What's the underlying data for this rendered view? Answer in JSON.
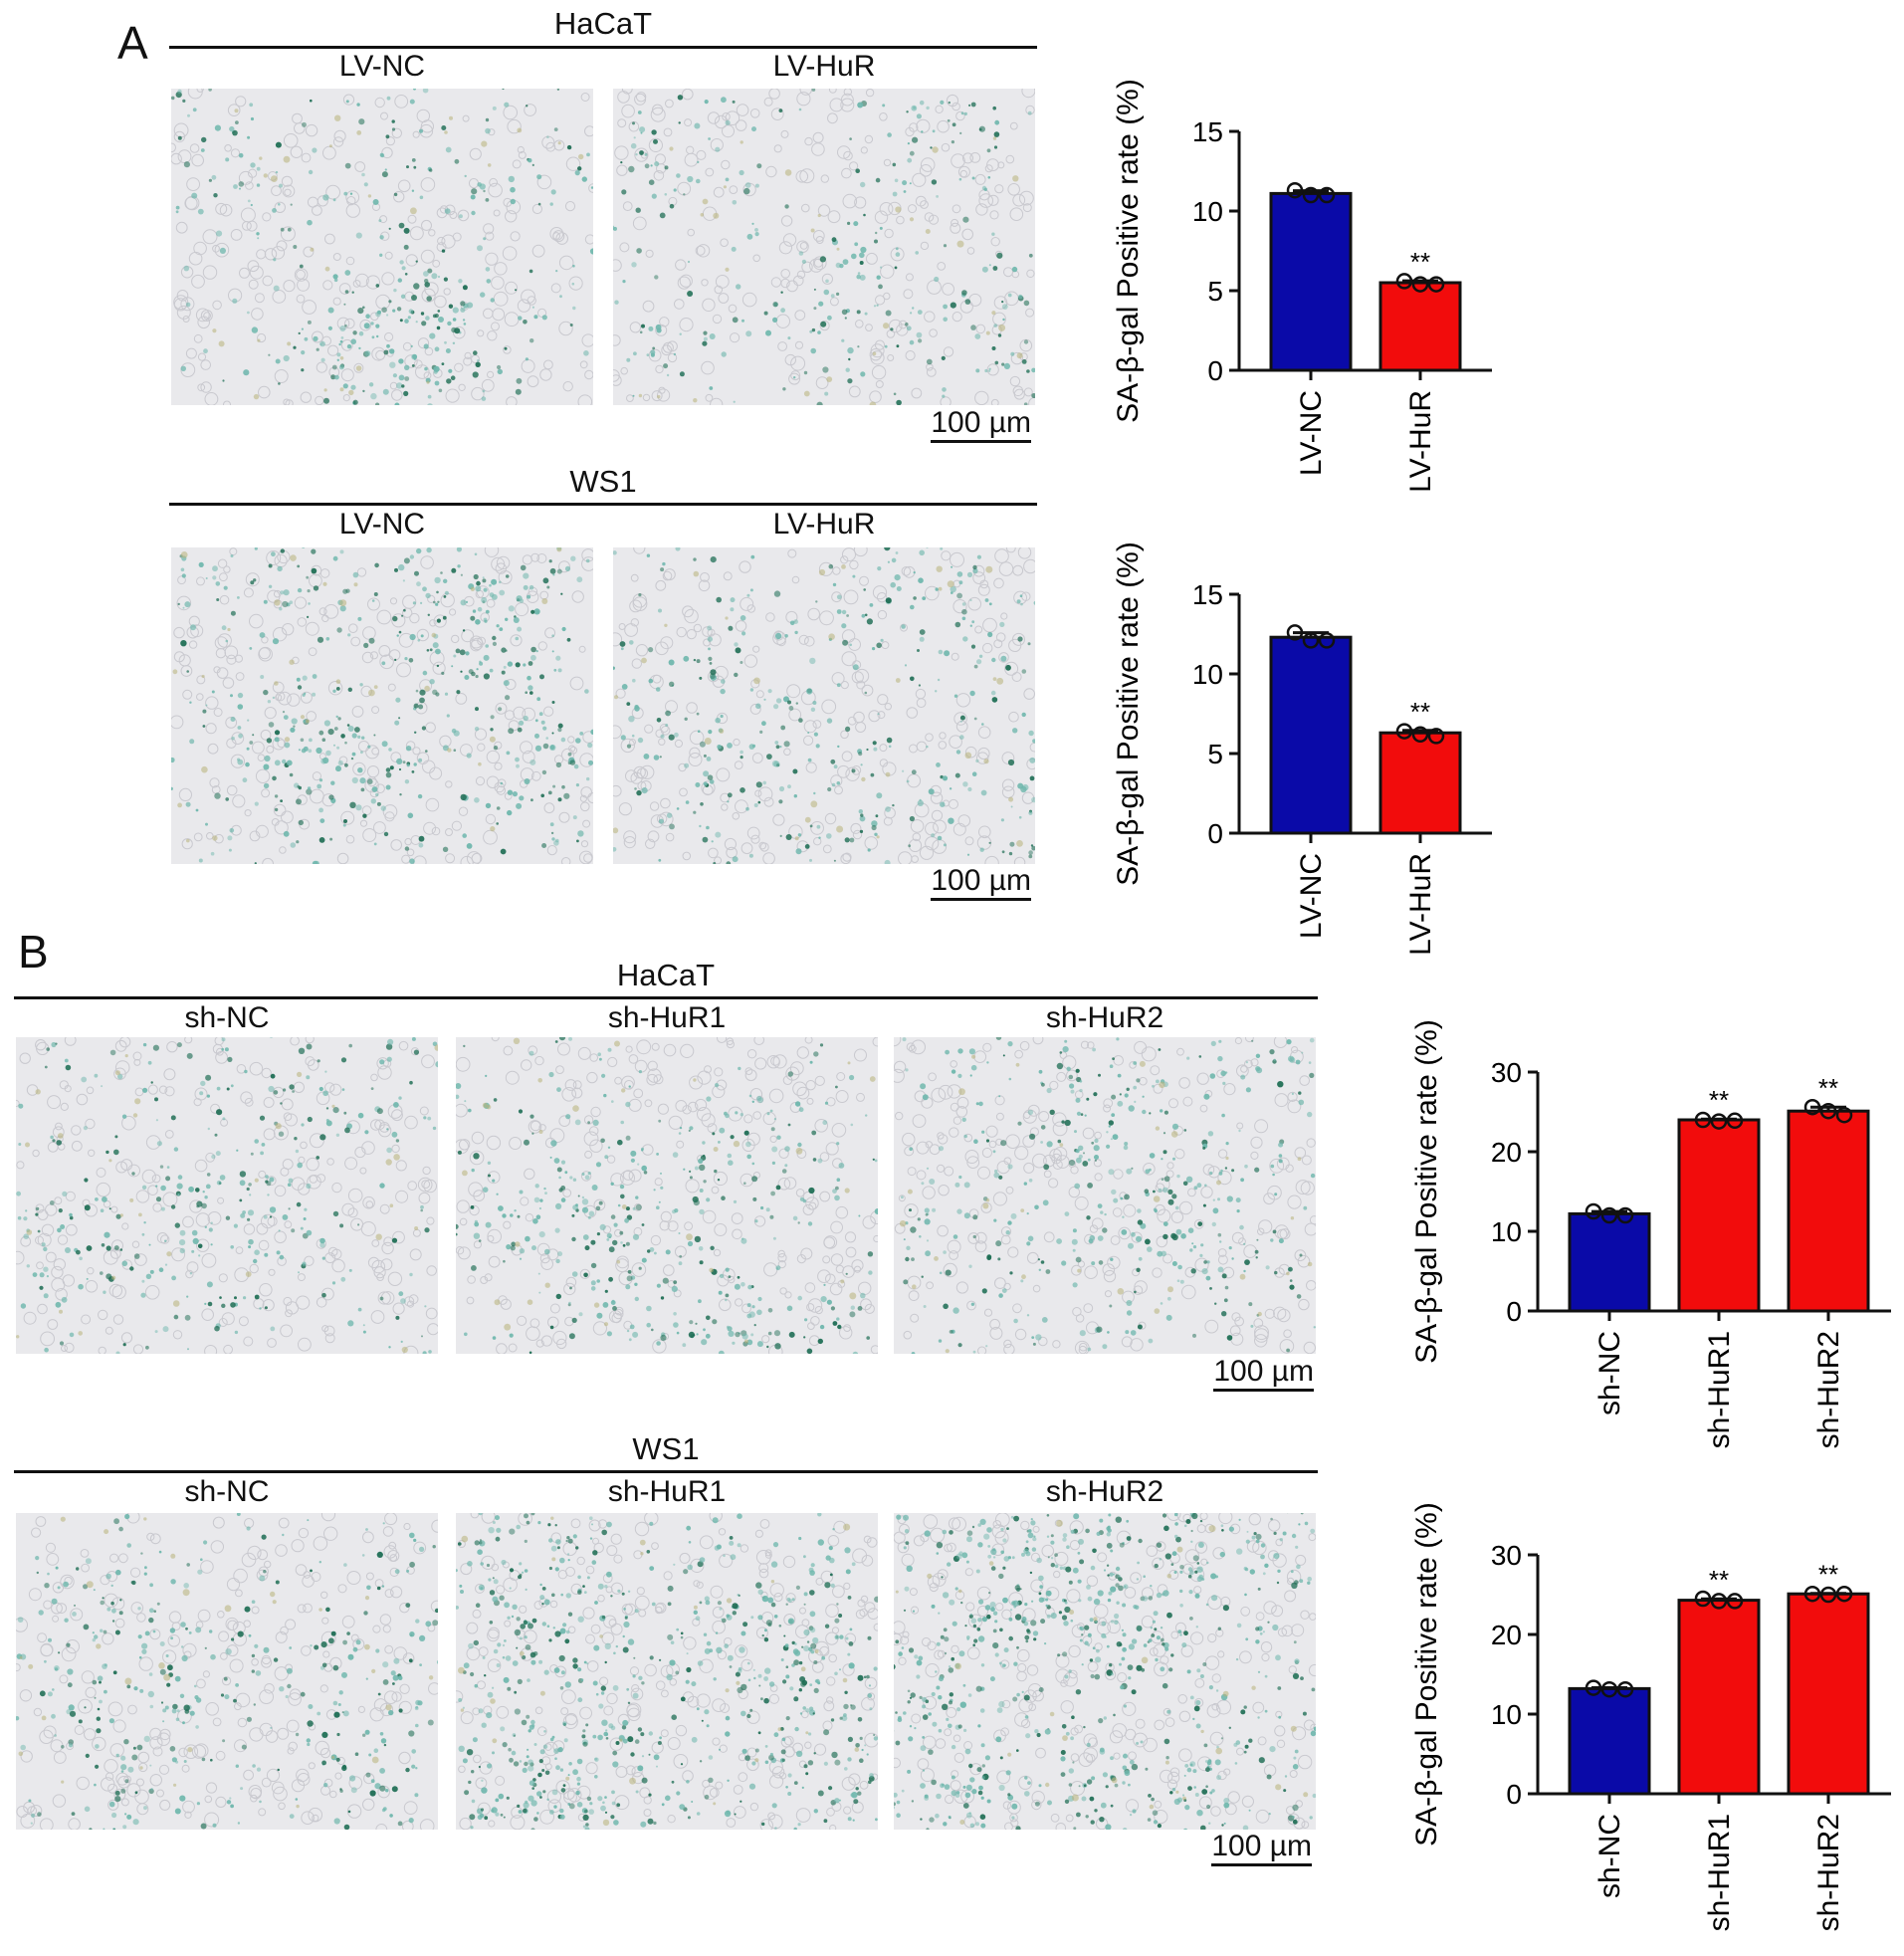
{
  "panels": {
    "a": {
      "letter": "A",
      "groups": [
        {
          "title": "HaCaT",
          "conditions": [
            "LV-NC",
            "LV-HuR"
          ],
          "scale_bar": "100 µm"
        },
        {
          "title": "WS1",
          "conditions": [
            "LV-NC",
            "LV-HuR"
          ],
          "scale_bar": "100 µm"
        }
      ]
    },
    "b": {
      "letter": "B",
      "groups": [
        {
          "title": "HaCaT",
          "conditions": [
            "sh-NC",
            "sh-HuR1",
            "sh-HuR2"
          ],
          "scale_bar": "100 µm"
        },
        {
          "title": "WS1",
          "conditions": [
            "sh-NC",
            "sh-HuR1",
            "sh-HuR2"
          ],
          "scale_bar": "100 µm"
        }
      ]
    }
  },
  "colors": {
    "control_bar": "#0a0aa8",
    "treatment_bar": "#f20c0c",
    "stain_light": "#6fb7ad",
    "stain_dark": "#1f6e55",
    "background_gray": "#e9e9ec"
  },
  "chart_data": [
    {
      "type": "bar",
      "categories": [
        "LV-NC",
        "LV-HuR"
      ],
      "values": [
        11.1,
        5.5
      ],
      "points": [
        [
          11.3,
          11.0,
          11.0
        ],
        [
          5.6,
          5.4,
          5.4
        ]
      ],
      "significance": [
        "",
        "**"
      ],
      "ylabel": "SA-β-gal Positive rate (%)",
      "ylim": [
        0,
        15
      ],
      "yticks": [
        0,
        5,
        10,
        15
      ],
      "bar_colors": [
        "#0a0aa8",
        "#f20c0c"
      ],
      "grid": false
    },
    {
      "type": "bar",
      "categories": [
        "LV-NC",
        "LV-HuR"
      ],
      "values": [
        12.3,
        6.3
      ],
      "points": [
        [
          12.6,
          12.1,
          12.1
        ],
        [
          6.4,
          6.2,
          6.1
        ]
      ],
      "significance": [
        "",
        "**"
      ],
      "ylabel": "SA-β-gal Positive rate (%)",
      "ylim": [
        0,
        15
      ],
      "yticks": [
        0,
        5,
        10,
        15
      ],
      "bar_colors": [
        "#0a0aa8",
        "#f20c0c"
      ],
      "grid": false
    },
    {
      "type": "bar",
      "categories": [
        "sh-NC",
        "sh-HuR1",
        "sh-HuR2"
      ],
      "values": [
        12.2,
        24.0,
        25.1
      ],
      "points": [
        [
          12.5,
          12.0,
          12.0
        ],
        [
          24.0,
          23.8,
          23.9
        ],
        [
          25.6,
          25.1,
          24.6
        ]
      ],
      "significance": [
        "",
        "**",
        "**"
      ],
      "ylabel": "SA-β-gal Positive rate (%)",
      "ylim": [
        0,
        30
      ],
      "yticks": [
        0,
        10,
        20,
        30
      ],
      "bar_colors": [
        "#0a0aa8",
        "#f20c0c",
        "#f20c0c"
      ],
      "grid": false
    },
    {
      "type": "bar",
      "categories": [
        "sh-NC",
        "sh-HuR1",
        "sh-HuR2"
      ],
      "values": [
        13.2,
        24.3,
        25.1
      ],
      "points": [
        [
          13.3,
          13.1,
          13.1
        ],
        [
          24.5,
          24.2,
          24.2
        ],
        [
          25.1,
          25.0,
          25.1
        ]
      ],
      "significance": [
        "",
        "**",
        "**"
      ],
      "ylabel": "SA-β-gal Positive rate (%)",
      "ylim": [
        0,
        30
      ],
      "yticks": [
        0,
        10,
        20,
        30
      ],
      "bar_colors": [
        "#0a0aa8",
        "#f20c0c",
        "#f20c0c"
      ],
      "grid": false
    }
  ]
}
